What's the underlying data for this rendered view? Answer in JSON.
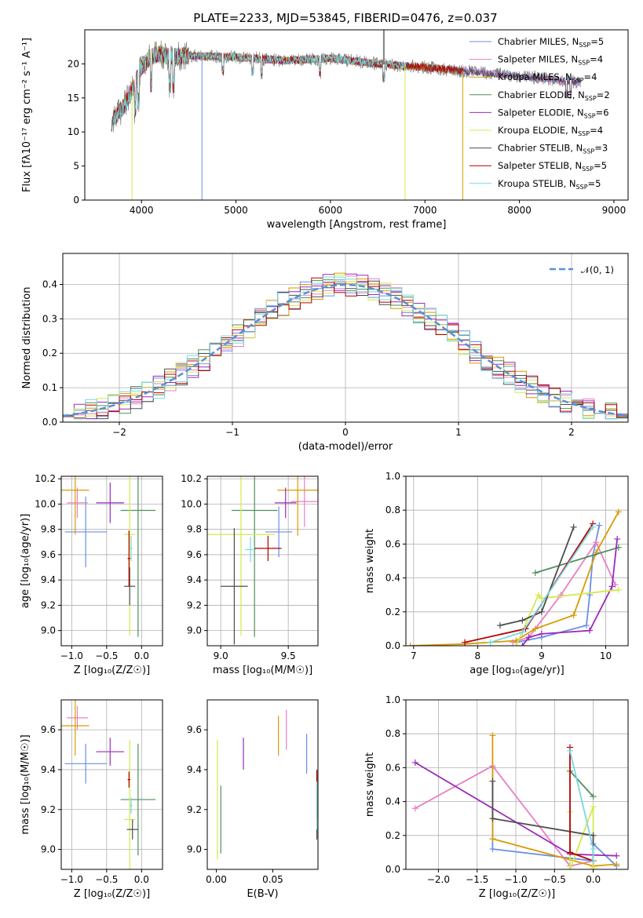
{
  "figure_title": "PLATE=2233, MJD=53845, FIBERID=0476, z=0.037",
  "series_colors": [
    "#6a8fe6",
    "#e97fc4",
    "#d99a00",
    "#4f8f5b",
    "#9a2ab8",
    "#d4e84c",
    "#4d4d4d",
    "#b30000",
    "#79d7e0"
  ],
  "chart_data": [
    {
      "id": "spectrum",
      "type": "line",
      "xlabel": "wavelength [Angstrom, rest frame]",
      "ylabel": "Flux [fλ10⁻¹⁷ erg cm⁻² s⁻¹ A⁻¹]",
      "xlim": [
        3400,
        9150
      ],
      "ylim": [
        0,
        25
      ],
      "xticks": [
        4000,
        5000,
        6000,
        7000,
        8000,
        9000
      ],
      "yticks": [
        0,
        5,
        10,
        15,
        20
      ],
      "legend_position": "top-right",
      "legend": [
        {
          "name": "Chabrier MILES",
          "n": 5
        },
        {
          "name": "Salpeter MILES",
          "n": 4
        },
        {
          "name": "Kroupa MILES",
          "n": 4
        },
        {
          "name": "Chabrier ELODIE",
          "n": 2
        },
        {
          "name": "Salpeter ELODIE",
          "n": 6
        },
        {
          "name": "Kroupa ELODIE",
          "n": 4
        },
        {
          "name": "Chabrier STELIB",
          "n": 3
        },
        {
          "name": "Salpeter STELIB",
          "n": 5
        },
        {
          "name": "Kroupa STELIB",
          "n": 5
        }
      ],
      "nssp_label": "N",
      "nssp_sub": "SSP",
      "continuum": {
        "x": [
          3680,
          3700,
          3800,
          3900,
          4000,
          4100,
          4200,
          4300,
          4500,
          5000,
          5500,
          6000,
          6500,
          7000,
          7500,
          8000,
          8500,
          8650
        ],
        "y": [
          11.0,
          12.0,
          13.5,
          16.0,
          19.5,
          21.0,
          21.5,
          21.0,
          21.2,
          21.0,
          20.5,
          20.8,
          20.0,
          19.5,
          18.8,
          18.2,
          17.5,
          17.3
        ]
      },
      "model_ranges": [
        [
          3700,
          8650
        ],
        [
          3700,
          8650
        ],
        [
          3700,
          7400
        ],
        [
          3700,
          6800
        ],
        [
          3900,
          6800
        ],
        [
          3900,
          6800
        ],
        [
          3680,
          8650
        ],
        [
          3700,
          7400
        ],
        [
          3700,
          6800
        ]
      ],
      "dropouts": [
        {
          "x": 4640,
          "series": 0
        },
        {
          "x": 3900,
          "series": 5
        },
        {
          "x": 6790,
          "series": 5
        },
        {
          "x": 7400,
          "series": 2
        }
      ],
      "spike": {
        "x": 6565,
        "y": 25
      }
    },
    {
      "id": "residuals",
      "type": "histogram",
      "xlabel": "(data-model)/error",
      "ylabel": "Normed distribution",
      "xlim": [
        -2.5,
        2.5
      ],
      "ylim": [
        0,
        0.49
      ],
      "xticks": [
        -2,
        -1,
        0,
        1,
        2
      ],
      "xticklabels": [
        "−2",
        "−1",
        "0",
        "1",
        "2"
      ],
      "yticks": [
        0.0,
        0.1,
        0.2,
        0.3,
        0.4
      ],
      "yticklabels": [
        "0.0",
        "0.1",
        "0.2",
        "0.3",
        "0.4"
      ],
      "grid": true,
      "legend_position": "top-right",
      "normal_curve": {
        "label": "𝒩(0, 1)",
        "mean": 0,
        "sigma": 1
      },
      "bin_width": 0.1
    },
    {
      "id": "age-vs-Z",
      "type": "errorbar",
      "xlabel": "Z [log₁₀(Z/Z☉)]",
      "ylabel": "age  [log₁₀(age/yr)]",
      "xlim": [
        -1.15,
        0.3
      ],
      "ylim": [
        8.88,
        10.22
      ],
      "xticks": [
        -1.0,
        -0.5,
        0.0
      ],
      "xticklabels": [
        "−1.0",
        "−0.5",
        "0.0"
      ],
      "yticks": [
        9.0,
        9.2,
        9.4,
        9.6,
        9.8,
        10.0,
        10.2
      ],
      "yticklabels": [
        "9.0",
        "9.2",
        "9.4",
        "9.6",
        "9.8",
        "10.0",
        "10.2"
      ],
      "grid": true,
      "points": [
        {
          "x": -0.8,
          "y": 9.78,
          "xerr": 0.3,
          "yerr": 0.28
        },
        {
          "x": -0.92,
          "y": 10.01,
          "xerr": 0.15,
          "yerr": 0.12
        },
        {
          "x": -0.95,
          "y": 10.11,
          "xerr": 0.2,
          "yerr": 0.35
        },
        {
          "x": -0.05,
          "y": 9.95,
          "xerr": 0.25,
          "yerr": 1.0
        },
        {
          "x": -0.45,
          "y": 10.01,
          "xerr": 0.2,
          "yerr": 0.16
        },
        {
          "x": -0.17,
          "y": 9.76,
          "xerr": 0.08,
          "yerr": 0.8
        },
        {
          "x": -0.17,
          "y": 9.35,
          "xerr": 0.08,
          "yerr": 0.15
        },
        {
          "x": -0.18,
          "y": 9.57,
          "xerr": 0.02,
          "yerr": 0.22
        },
        {
          "x": -0.15,
          "y": 9.65,
          "xerr": 0.02,
          "yerr": 0.1
        }
      ]
    },
    {
      "id": "age-vs-mass",
      "type": "errorbar",
      "xlabel": "mass [log₁₀(M/M☉)]",
      "ylabel": "",
      "xlim": [
        8.9,
        9.72
      ],
      "ylim": [
        8.88,
        10.22
      ],
      "xticks": [
        9.0,
        9.5
      ],
      "xticklabels": [
        "9.0",
        "9.5"
      ],
      "yticks": [
        9.0,
        9.2,
        9.4,
        9.6,
        9.8,
        10.0,
        10.2
      ],
      "yticklabels": [
        "9.0",
        "9.2",
        "9.4",
        "9.6",
        "9.8",
        "10.0",
        "10.2"
      ],
      "grid": true,
      "points": [
        {
          "x": 9.43,
          "y": 9.78,
          "xerr": 0.1,
          "yerr": 0.2
        },
        {
          "x": 9.62,
          "y": 10.02,
          "xerr": 0.1,
          "yerr": 0.2
        },
        {
          "x": 9.57,
          "y": 10.11,
          "xerr": 0.15,
          "yerr": 0.36
        },
        {
          "x": 9.25,
          "y": 9.95,
          "xerr": 0.17,
          "yerr": 1.0
        },
        {
          "x": 9.48,
          "y": 10.01,
          "xerr": 0.08,
          "yerr": 0.12
        },
        {
          "x": 9.15,
          "y": 9.76,
          "xerr": 0.25,
          "yerr": 0.8
        },
        {
          "x": 9.1,
          "y": 9.35,
          "xerr": 0.1,
          "yerr": 0.46
        },
        {
          "x": 9.35,
          "y": 9.65,
          "xerr": 0.1,
          "yerr": 0.1
        },
        {
          "x": 9.22,
          "y": 9.64,
          "xerr": 0.04,
          "yerr": 0.1
        }
      ]
    },
    {
      "id": "mass-weight-vs-age",
      "type": "line",
      "xlabel": "age  [log₁₀(age/yr)]",
      "ylabel": "mass weight",
      "xlim": [
        6.88,
        10.35
      ],
      "ylim": [
        0,
        1.0
      ],
      "xticks": [
        7,
        8,
        9,
        10
      ],
      "xticklabels": [
        "7",
        "8",
        "9",
        "10"
      ],
      "yticks": [
        0.0,
        0.2,
        0.4,
        0.6,
        0.8,
        1.0
      ],
      "yticklabels": [
        "0.0",
        "0.2",
        "0.4",
        "0.6",
        "0.8",
        "1.0"
      ],
      "grid": true,
      "series": [
        {
          "x": [
            8.6,
            9.0,
            9.7,
            9.75,
            9.8,
            9.9
          ],
          "y": [
            0.02,
            0.05,
            0.12,
            0.3,
            0.53,
            0.71
          ]
        },
        {
          "x": [
            8.55,
            8.8,
            9.3,
            9.85,
            10.15
          ],
          "y": [
            0.02,
            0.05,
            0.3,
            0.61,
            0.36
          ]
        },
        {
          "x": [
            6.95,
            7.8,
            8.6,
            8.9,
            9.5,
            9.85,
            10.2
          ],
          "y": [
            0.0,
            0.01,
            0.03,
            0.1,
            0.18,
            0.55,
            0.79
          ]
        },
        {
          "x": [
            8.9,
            10.2
          ],
          "y": [
            0.43,
            0.58
          ]
        },
        {
          "x": [
            8.7,
            8.8,
            9.0,
            9.75,
            10.1,
            10.18
          ],
          "y": [
            0.0,
            0.05,
            0.07,
            0.09,
            0.35,
            0.63
          ]
        },
        {
          "x": [
            8.6,
            8.95,
            9.0,
            10.2
          ],
          "y": [
            0.0,
            0.3,
            0.28,
            0.33
          ]
        },
        {
          "x": [
            8.35,
            8.7,
            9.0,
            9.5
          ],
          "y": [
            0.12,
            0.15,
            0.2,
            0.7
          ]
        },
        {
          "x": [
            7.8,
            8.75,
            9.8
          ],
          "y": [
            0.02,
            0.1,
            0.72
          ]
        },
        {
          "x": [
            8.2,
            8.7,
            9.8
          ],
          "y": [
            0.02,
            0.08,
            0.7
          ]
        }
      ]
    },
    {
      "id": "mass-vs-Z",
      "type": "errorbar",
      "xlabel": "Z [log₁₀(Z/Z☉)]",
      "ylabel": "mass [log₁₀(M/M☉)]",
      "xlim": [
        -1.15,
        0.3
      ],
      "ylim": [
        8.9,
        9.75
      ],
      "xticks": [
        -1.0,
        -0.5,
        0.0
      ],
      "xticklabels": [
        "−1.0",
        "−0.5",
        "0.0"
      ],
      "yticks": [
        9.0,
        9.2,
        9.4,
        9.6
      ],
      "yticklabels": [
        "9.0",
        "9.2",
        "9.4",
        "9.6"
      ],
      "grid": true,
      "points": [
        {
          "x": -0.8,
          "y": 9.43,
          "xerr": 0.3,
          "yerr": 0.1
        },
        {
          "x": -0.92,
          "y": 9.66,
          "xerr": 0.15,
          "yerr": 0.06
        },
        {
          "x": -0.95,
          "y": 9.62,
          "xerr": 0.2,
          "yerr": 0.15
        },
        {
          "x": -0.05,
          "y": 9.25,
          "xerr": 0.25,
          "yerr": 0.28
        },
        {
          "x": -0.45,
          "y": 9.49,
          "xerr": 0.2,
          "yerr": 0.07
        },
        {
          "x": -0.17,
          "y": 9.15,
          "xerr": 0.08,
          "yerr": 0.4
        },
        {
          "x": -0.13,
          "y": 9.1,
          "xerr": 0.08,
          "yerr": 0.05
        },
        {
          "x": -0.18,
          "y": 9.35,
          "xerr": 0.02,
          "yerr": 0.04
        },
        {
          "x": -0.15,
          "y": 9.22,
          "xerr": 0.02,
          "yerr": 0.04
        }
      ]
    },
    {
      "id": "mass-vs-EBV",
      "type": "errorbar",
      "xlabel": "E(B-V)",
      "ylabel": "",
      "xlim": [
        -0.008,
        0.09
      ],
      "ylim": [
        8.9,
        9.75
      ],
      "xticks": [
        0.0,
        0.05
      ],
      "xticklabels": [
        "0.00",
        "0.05"
      ],
      "yticks": [
        9.0,
        9.2,
        9.4,
        9.6
      ],
      "yticklabels": [
        "9.0",
        "9.2",
        "9.4",
        "9.6"
      ],
      "grid": false,
      "points": [
        {
          "x": 0.08,
          "y": 9.48,
          "yerr": 0.1
        },
        {
          "x": 0.062,
          "y": 9.6,
          "yerr": 0.1
        },
        {
          "x": 0.055,
          "y": 9.57,
          "yerr": 0.1
        },
        {
          "x": 0.004,
          "y": 9.15,
          "yerr": 0.17
        },
        {
          "x": 0.024,
          "y": 9.48,
          "yerr": 0.08
        },
        {
          "x": 0.001,
          "y": 9.25,
          "yerr": 0.3
        },
        {
          "x": 0.089,
          "y": 9.22,
          "yerr": 0.17
        },
        {
          "x": 0.089,
          "y": 9.28,
          "yerr": 0.12
        },
        {
          "x": 0.089,
          "y": 9.22,
          "yerr": 0.12
        }
      ]
    },
    {
      "id": "mass-weight-vs-Z",
      "type": "line",
      "xlabel": "Z [log₁₀(Z/Z☉)]",
      "ylabel": "mass weight",
      "xlim": [
        -2.42,
        0.45
      ],
      "ylim": [
        0,
        1.0
      ],
      "xticks": [
        -2.0,
        -1.5,
        -1.0,
        -0.5,
        0.0
      ],
      "xticklabels": [
        "−2.0",
        "−1.5",
        "−1.0",
        "−0.5",
        "0.0"
      ],
      "yticks": [
        0.0,
        0.2,
        0.4,
        0.6,
        0.8,
        1.0
      ],
      "yticklabels": [
        "0.0",
        "0.2",
        "0.4",
        "0.6",
        "0.8",
        "1.0"
      ],
      "grid": true,
      "series": [
        {
          "x": [
            -1.3,
            -1.3,
            0.0,
            0.0,
            0.3
          ],
          "y": [
            0.6,
            0.12,
            0.05,
            0.15,
            0.02
          ]
        },
        {
          "x": [
            -2.3,
            -1.3,
            -0.3,
            0.0
          ],
          "y": [
            0.36,
            0.61,
            0.02,
            0.05
          ]
        },
        {
          "x": [
            -1.3,
            -1.3,
            0.0,
            0.3
          ],
          "y": [
            0.79,
            0.18,
            0.02,
            0.03
          ]
        },
        {
          "x": [
            -0.3,
            0.0
          ],
          "y": [
            0.58,
            0.43
          ]
        },
        {
          "x": [
            -2.3,
            -0.3,
            0.3
          ],
          "y": [
            0.63,
            0.09,
            0.08
          ]
        },
        {
          "x": [
            -0.3,
            -0.3,
            0.0,
            0.0
          ],
          "y": [
            0.34,
            0.0,
            0.37,
            0.01
          ]
        },
        {
          "x": [
            -1.3,
            -1.3,
            0.0,
            0.0
          ],
          "y": [
            0.52,
            0.3,
            0.2,
            0.05
          ]
        },
        {
          "x": [
            -0.3,
            -0.3,
            0.0
          ],
          "y": [
            0.72,
            0.1,
            0.05
          ]
        },
        {
          "x": [
            -0.3,
            0.0,
            0.0
          ],
          "y": [
            0.7,
            0.12,
            0.05
          ]
        }
      ]
    }
  ]
}
